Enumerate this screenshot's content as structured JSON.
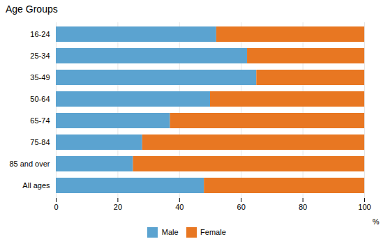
{
  "chart_data": {
    "type": "bar",
    "orientation": "horizontal",
    "stacked": true,
    "title": "Age Groups",
    "xlabel": "%",
    "categories": [
      "16-24",
      "25-34",
      "35-49",
      "50-64",
      "65-74",
      "75-84",
      "85 and over",
      "All ages"
    ],
    "series": [
      {
        "name": "Male",
        "color": "#5BA3D0",
        "values": [
          52,
          62,
          65,
          50,
          37,
          28,
          25,
          48
        ]
      },
      {
        "name": "Female",
        "color": "#E87722",
        "values": [
          48,
          38,
          35,
          50,
          63,
          72,
          75,
          52
        ]
      }
    ],
    "xlim": [
      0,
      100
    ],
    "xticks": [
      0,
      20,
      40,
      60,
      80,
      100
    ],
    "grid": true,
    "legend": "bottom"
  }
}
